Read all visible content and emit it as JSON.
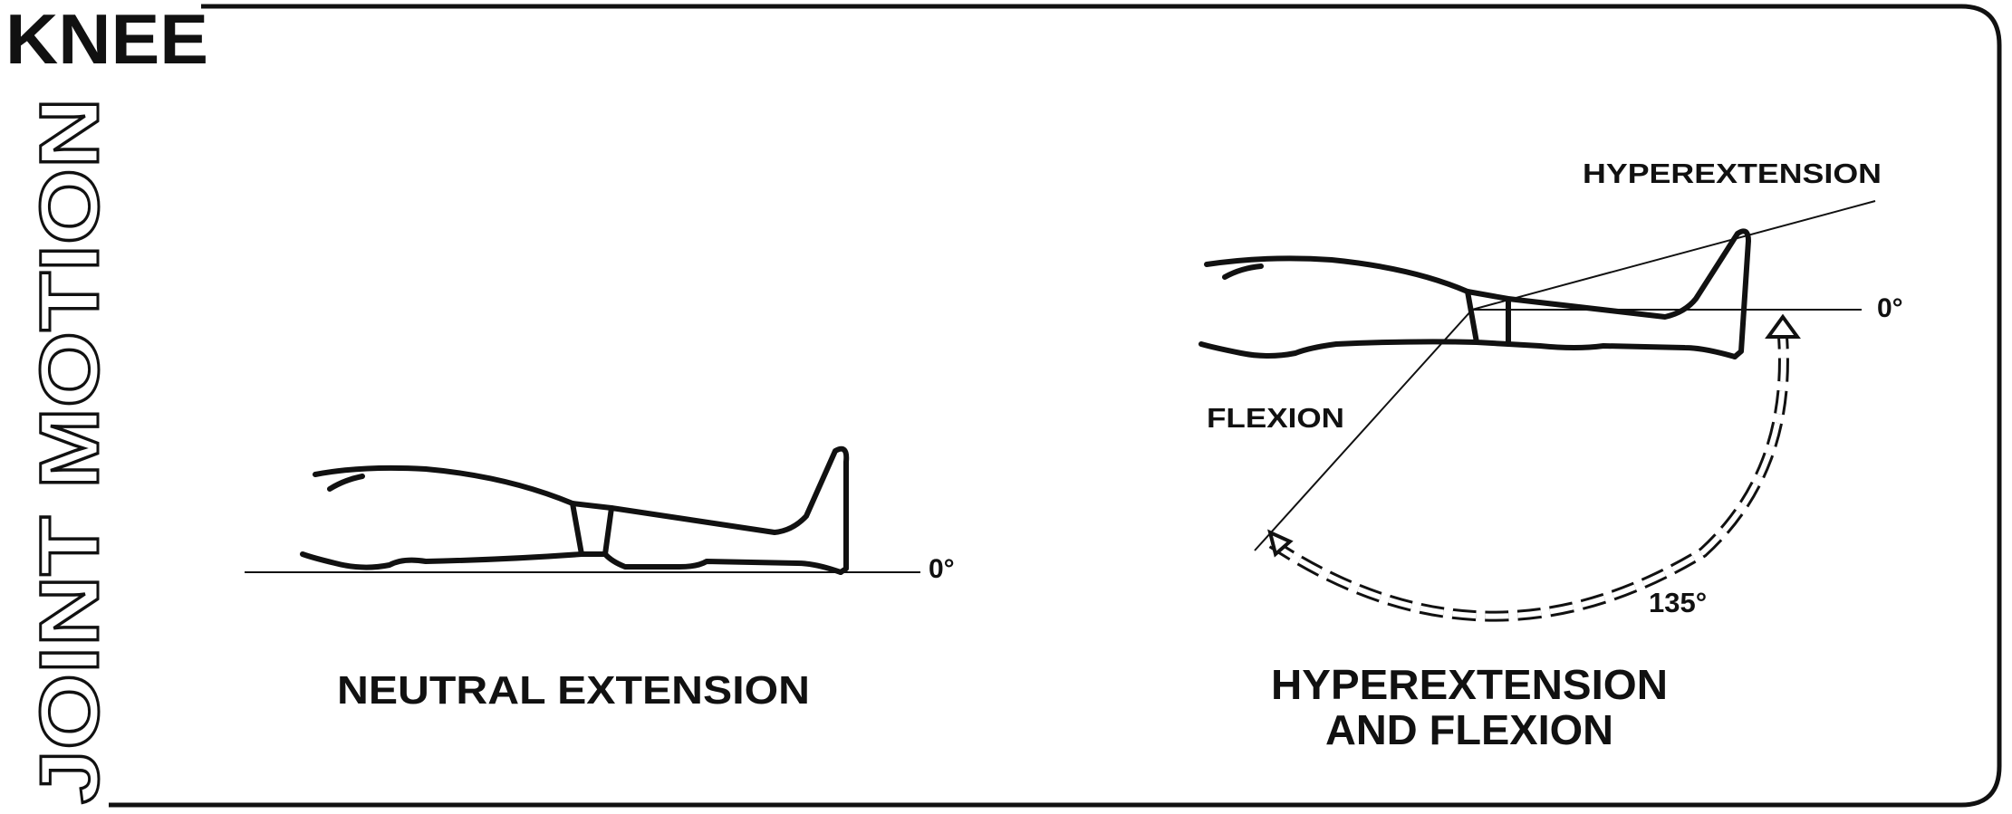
{
  "header": {
    "title": "KNEE",
    "side_title": "JOINT MOTION"
  },
  "panels": {
    "neutral": {
      "caption": "NEUTRAL EXTENSION",
      "zero_label": "0°"
    },
    "hyperflex": {
      "caption_line1": "HYPEREXTENSION",
      "caption_line2": "AND FLEXION",
      "hyperextension_label": "HYPEREXTENSION",
      "flexion_label": "FLEXION",
      "zero_label": "0°",
      "flexion_angle_label": "135°",
      "flexion_angle_deg": 135
    }
  },
  "colors": {
    "ink": "#111111",
    "paper": "#ffffff"
  }
}
